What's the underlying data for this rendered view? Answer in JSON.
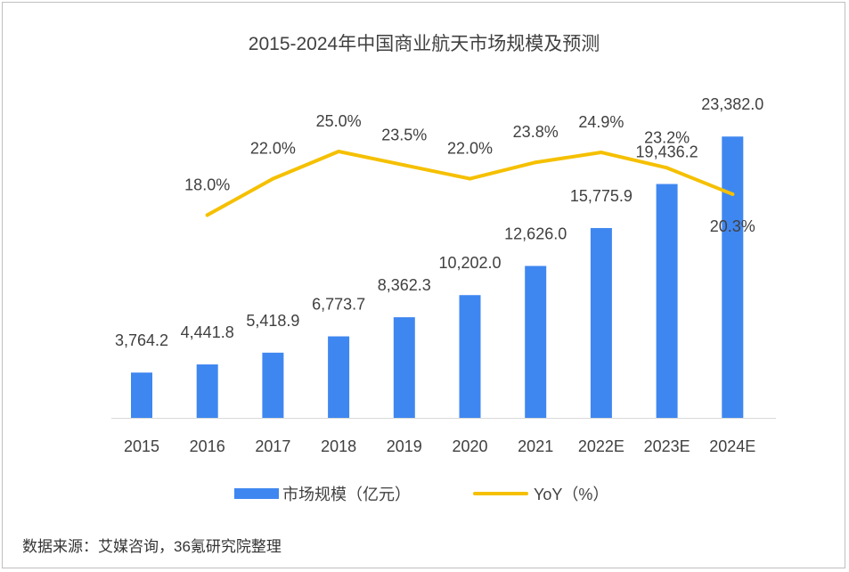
{
  "chart_data": {
    "type": "bar",
    "title": "2015-2024年中国商业航天市场规模及预测",
    "categories": [
      "2015",
      "2016",
      "2017",
      "2018",
      "2019",
      "2020",
      "2021",
      "2022E",
      "2023E",
      "2024E"
    ],
    "series": [
      {
        "name": "市场规模（亿元）",
        "type": "bar",
        "color": "#3f87f0",
        "values": [
          3764.2,
          4441.8,
          5418.9,
          6773.7,
          8362.3,
          10202.0,
          12626.0,
          15775.9,
          19436.2,
          23382.0
        ],
        "labels": [
          "3,764.2",
          "4,441.8",
          "5,418.9",
          "6,773.7",
          "8,362.3",
          "10,202.0",
          "12,626.0",
          "15,775.9",
          "19,436.2",
          "23,382.0"
        ]
      },
      {
        "name": "YoY（%）",
        "type": "line",
        "color": "#f5c000",
        "values": [
          null,
          18.0,
          22.0,
          25.0,
          23.5,
          22.0,
          23.8,
          24.9,
          23.2,
          20.3
        ],
        "labels": [
          null,
          "18.0%",
          "22.0%",
          "25.0%",
          "23.5%",
          "22.0%",
          "23.8%",
          "24.9%",
          "23.2%",
          "20.3%"
        ]
      }
    ],
    "xlabel": "",
    "ylabel": "",
    "ylim": [
      0,
      23400
    ],
    "y2lim": [
      0,
      38
    ],
    "legend": "bottom"
  },
  "source": "数据来源：艾媒咨询，36氪研究院整理"
}
